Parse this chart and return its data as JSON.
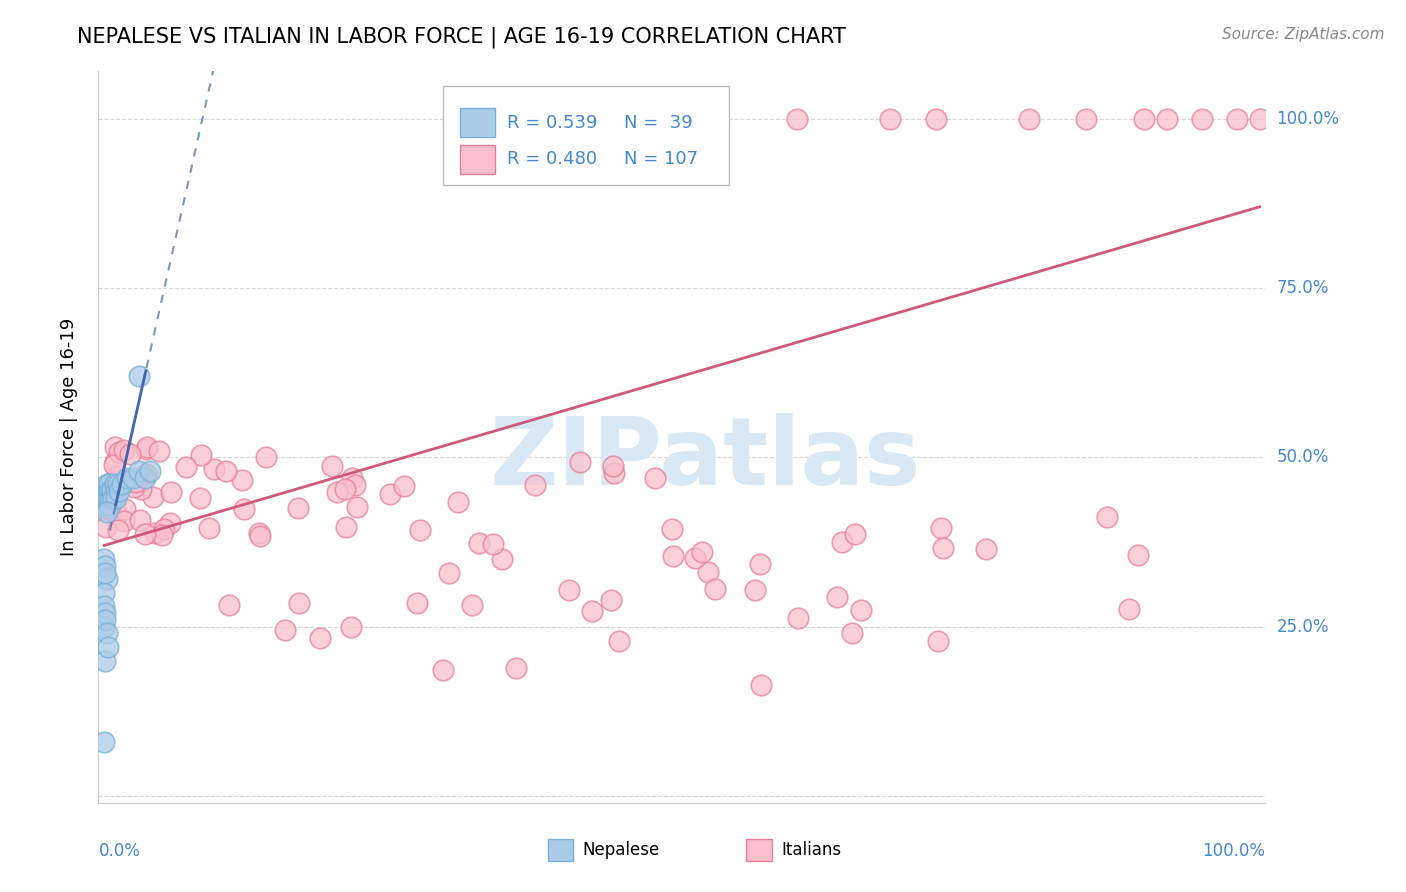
{
  "title": "NEPALESE VS ITALIAN IN LABOR FORCE | AGE 16-19 CORRELATION CHART",
  "source_text": "Source: ZipAtlas.com",
  "ylabel": "In Labor Force | Age 16-19",
  "legend_r1": "R = 0.539",
  "legend_n1": "N =  39",
  "legend_r2": "R = 0.480",
  "legend_n2": "N = 107",
  "nepalese_face": "#aacce8",
  "nepalese_edge": "#7ab0d8",
  "italian_face": "#f9c0cc",
  "italian_edge": "#e8809a",
  "blue_line_color": "#4466aa",
  "pink_line_color": "#d05878",
  "r_color": "#4488cc",
  "watermark_color": "#d8e8f5",
  "right_axis_color": "#4488cc",
  "bottom_axis_color": "#4488cc"
}
